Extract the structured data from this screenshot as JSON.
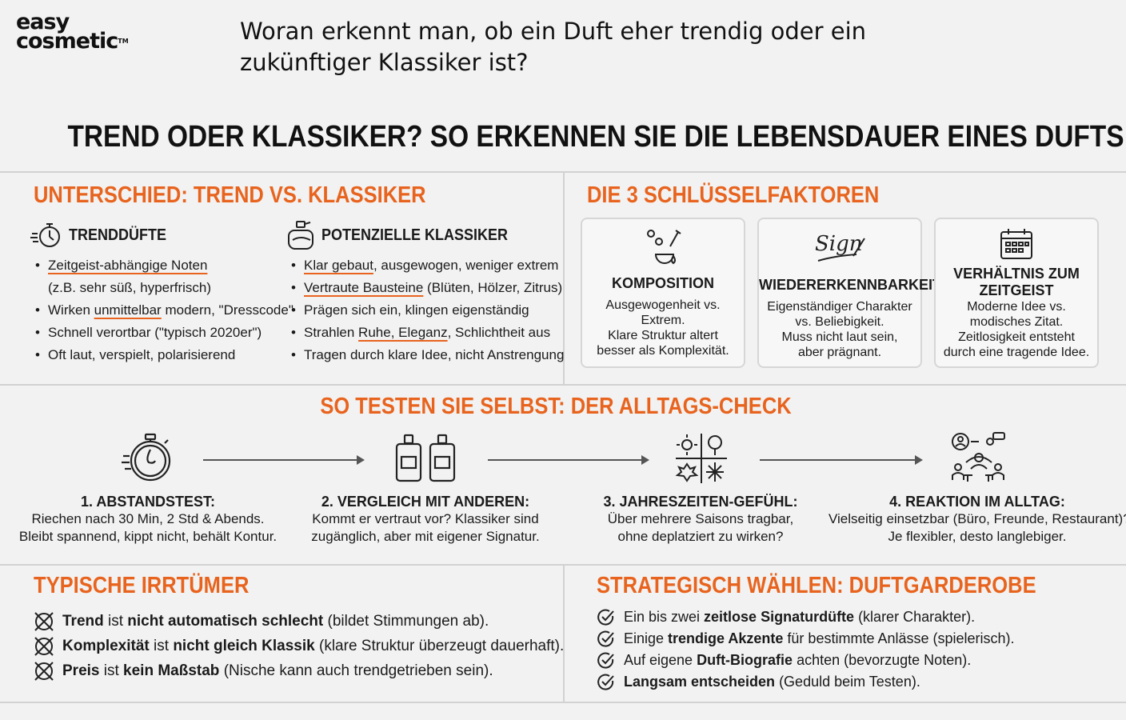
{
  "logo": {
    "line1": "easy",
    "line2": "cosmetic",
    "tm": "TM"
  },
  "question": {
    "line1": "Woran erkennt man, ob ein Duft eher trendig oder ein",
    "line2": "zukünftiger Klassiker ist?"
  },
  "main_title": "TREND ODER KLASSIKER? SO ERKENNEN SIE DIE LEBENSDAUER EINES DUFTS",
  "unterschied": {
    "title": "UNTERSCHIED: TREND VS. KLASSIKER",
    "trend": {
      "title": "TRENDDÜFTE",
      "items": [
        {
          "u": "Zeitgeist-abhängige Noten",
          "sub": "(z.B. sehr süß, hyperfrisch)"
        },
        {
          "pre": "Wirken ",
          "u": "unmittelbar",
          "post": " modern, \"Dresscode\""
        },
        {
          "pre": "Schnell verortbar (\"typisch 2020er\")"
        },
        {
          "pre": "Oft laut, verspielt, polarisierend"
        }
      ]
    },
    "klassik": {
      "title": "POTENZIELLE KLASSIKER",
      "items": [
        {
          "u": "Klar gebaut",
          "post": ", ausgewogen, weniger extrem"
        },
        {
          "u": "Vertraute Bausteine",
          "post": " (Blüten, Hölzer, Zitrus)"
        },
        {
          "pre": "Prägen sich ein, klingen eigenständig"
        },
        {
          "pre": "Strahlen ",
          "u": "Ruhe, Eleganz",
          "post": ", Schlichtheit aus"
        },
        {
          "pre": "Tragen durch klare Idee, nicht Anstrengung"
        }
      ]
    }
  },
  "faktoren": {
    "title": "DIE 3 SCHLÜSSELFAKTOREN",
    "signature_text": "Sign",
    "cards": [
      {
        "icon": "perfume-drops-icon",
        "title": "KOMPOSITION",
        "desc": [
          "Ausgewogenheit vs.",
          "Extrem.",
          "Klare Struktur altert",
          "besser als Komplexität."
        ]
      },
      {
        "icon": "signature-icon",
        "title": "WIEDERERKENNBARKEIT",
        "desc": [
          "Eigenständiger Charakter",
          "vs. Beliebigkeit.",
          "Muss nicht laut sein,",
          "aber prägnant."
        ]
      },
      {
        "icon": "calendar-icon",
        "title1": "VERHÄLTNIS ZUM",
        "title2": "ZEITGEIST",
        "desc": [
          "Moderne Idee vs.",
          "modisches Zitat.",
          "Zeitlosigkeit entsteht",
          "durch eine tragende Idee."
        ]
      }
    ]
  },
  "alltag": {
    "title": "SO TESTEN SIE SELBST: DER ALLTAGS-CHECK",
    "steps": [
      {
        "icon": "stopwatch-nose-icon",
        "title": "1. ABSTANDSTEST:",
        "desc": [
          "Riechen nach 30 Min, 2 Std & Abends.",
          "Bleibt spannend, kippt nicht, behält Kontur."
        ]
      },
      {
        "icon": "two-bottles-icon",
        "title": "2. VERGLEICH MIT ANDEREN:",
        "desc": [
          "Kommt er vertraut vor? Klassiker sind",
          "zugänglich, aber mit eigener Signatur."
        ]
      },
      {
        "icon": "four-seasons-icon",
        "title": "3. JAHRESZEITEN-GEFÜHL:",
        "desc": [
          "Über mehrere Saisons tragbar,",
          "ohne deplatziert zu wirken?"
        ]
      },
      {
        "icon": "people-icon",
        "title": "4. REAKTION IM ALLTAG:",
        "desc": [
          "Vielseitig einsetzbar (Büro, Freunde, Restaurant)?",
          "Je flexibler, desto langlebiger."
        ]
      }
    ]
  },
  "irrtuemer": {
    "title": "TYPISCHE IRRTÜMER",
    "items": [
      {
        "b1": "Trend",
        "t1": " ist ",
        "b2": "nicht automatisch schlecht",
        "t2": " (bildet Stimmungen ab)."
      },
      {
        "b1": "Komplexität",
        "t1": " ist ",
        "b2": "nicht gleich Klassik",
        "t2": " (klare Struktur überzeugt dauerhaft)."
      },
      {
        "b1": "Preis",
        "t1": " ist ",
        "b2": "kein Maßstab",
        "t2": " (Nische kann auch trendgetrieben sein)."
      }
    ]
  },
  "strategie": {
    "title": "STRATEGISCH WÄHLEN: DUFTGARDEROBE",
    "items": [
      {
        "t1": "Ein bis zwei ",
        "b": "zeitlose Signaturdüfte",
        "t2": " (klarer Charakter)."
      },
      {
        "t1": "Einige ",
        "b": "trendige Akzente",
        "t2": " für bestimmte Anlässe (spielerisch)."
      },
      {
        "t1": "Auf eigene ",
        "b": "Duft-Biografie",
        "t2": " achten (bevorzugte Noten)."
      },
      {
        "t1": "",
        "b": "Langsam entscheiden",
        "t2": " (Geduld beim Testen)."
      }
    ]
  },
  "colors": {
    "accent": "#e8641e",
    "text": "#1a1a1a",
    "background": "#f2f2f2",
    "divider": "#d2d2d2"
  }
}
